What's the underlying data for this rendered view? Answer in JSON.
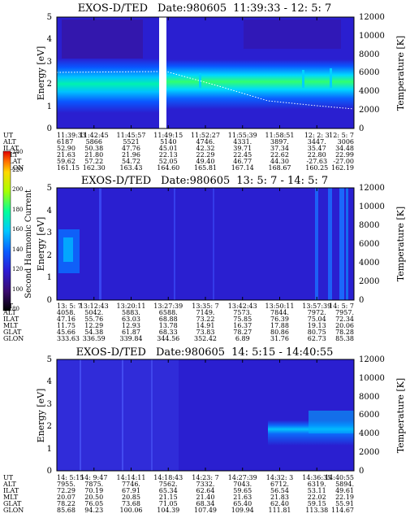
{
  "chart_data": [
    {
      "type": "heatmap",
      "title": "EXOS-D/TED",
      "date_label": "Date:980605",
      "time_range": "11:39:33 - 12: 5: 7",
      "ylabel": "Energy [eV]",
      "y2label": "Temperature [K]",
      "ylim": [
        0,
        5
      ],
      "yticks": [
        "0",
        "1",
        "2",
        "3",
        "4",
        "5"
      ],
      "y2lim": [
        0,
        12000
      ],
      "y2ticks": [
        "0",
        "2000",
        "4000",
        "6000",
        "8000",
        "10000",
        "12000"
      ],
      "data_gap": {
        "start_utc": "11:48:00",
        "end_utc": "11:48:40"
      },
      "temperature_trace": {
        "x": [
          0.0,
          0.25,
          0.5,
          0.6,
          0.75,
          0.9,
          1.0
        ],
        "y": [
          5900,
          5900,
          6000,
          5600,
          5000,
          4600,
          4700
        ]
      },
      "orbit_table": {
        "labels": [
          "UT",
          "ALT",
          "ILAT",
          "MLT",
          "GLAT",
          "GLON"
        ],
        "columns": [
          [
            "11:39:33",
            "6187",
            "52.90",
            "21.63",
            "59.62",
            "161.15"
          ],
          [
            "11:42:45",
            "5866",
            "50.38",
            "21.80",
            "57.22",
            "162.30"
          ],
          [
            "11:45:57",
            "5521",
            "47.76",
            "21.96",
            "54.72",
            "163.43"
          ],
          [
            "11:49:15",
            "5140",
            "45.01",
            "22.13",
            "52.05",
            "164.60"
          ],
          [
            "11:52:27",
            "4746.",
            "42.32",
            "22.29",
            "49.40",
            "165.81"
          ],
          [
            "11:55:39",
            "4331.",
            "39.71",
            "22.45",
            "46.77",
            "167.14"
          ],
          [
            "11:58:51",
            "3897.",
            "37.34",
            "22.62",
            "44.30",
            "168.67"
          ],
          [
            "12: 2: 3",
            "3447.",
            "35.47",
            "22.80",
            "-27.63",
            "160.25"
          ],
          [
            "12: 5: 7",
            "3006",
            "34.48",
            "22.99",
            "-27.00",
            "162.19"
          ]
        ]
      }
    },
    {
      "type": "heatmap",
      "title": "EXOS-D/TED",
      "date_label": "Date:980605",
      "time_range": "13: 5: 7 - 14: 5: 7",
      "ylabel": "Energy [eV]",
      "y2label": "Temperature [K]",
      "ylim": [
        0,
        5
      ],
      "yticks": [
        "0",
        "1",
        "2",
        "3",
        "4",
        "5"
      ],
      "y2lim": [
        0,
        12000
      ],
      "y2ticks": [
        "0",
        "2000",
        "4000",
        "6000",
        "8000",
        "10000",
        "12000"
      ],
      "colorbar": {
        "label": "Second Harmonic Current",
        "range": [
          80,
          240
        ],
        "ticks": [
          "80",
          "100",
          "120",
          "140",
          "160",
          "180",
          "200",
          "220",
          "240"
        ],
        "colors": [
          "#000000",
          "#3a0a6e",
          "#2d1bd4",
          "#0a5cff",
          "#00c8ff",
          "#00ff9c",
          "#a8ff00",
          "#ffd800",
          "#ff6a00",
          "#e00000"
        ]
      },
      "orbit_table": {
        "labels": [
          "UT",
          "ALT",
          "ILAT",
          "MLT",
          "GLAT",
          "GLON"
        ],
        "columns": [
          [
            "13: 5: 7",
            "4058.",
            "47.16",
            "11.75",
            "45.66",
            "333.63"
          ],
          [
            "13:12:43",
            "5042.",
            "55.76",
            "12.29",
            "54.38",
            "336.59"
          ],
          [
            "13:20:11",
            "5883.",
            "63.03",
            "12.93",
            "61.87",
            "339.84"
          ],
          [
            "13:27:39",
            "6588.",
            "68.88",
            "13.78",
            "68.33",
            "344.56"
          ],
          [
            "13:35: 7",
            "7149.",
            "73.22",
            "14.91",
            "73.83",
            "352.42"
          ],
          [
            "13:42:43",
            "7573.",
            "75.85",
            "16.37",
            "78.27",
            "6.89"
          ],
          [
            "13:50:11",
            "7844.",
            "76.39",
            "17.88",
            "80.86",
            "31.76"
          ],
          [
            "13:57:39",
            "7972.",
            "75.04",
            "19.13",
            "80.75",
            "62.73"
          ],
          [
            "14: 5: 7",
            "7957.",
            "72.34",
            "20.06",
            "78.28",
            "85.38"
          ]
        ]
      }
    },
    {
      "type": "heatmap",
      "title": "EXOS-D/TED",
      "date_label": "Date:980605",
      "time_range": "14: 5:15 - 14:40:55",
      "ylabel": "Energy [eV]",
      "y2label": "Temperature [K]",
      "ylim": [
        0,
        5
      ],
      "yticks": [
        "0",
        "1",
        "2",
        "3",
        "4",
        "5"
      ],
      "y2lim": [
        0,
        12000
      ],
      "y2ticks": [
        "0",
        "2000",
        "4000",
        "6000",
        "8000",
        "10000",
        "12000"
      ],
      "orbit_table": {
        "labels": [
          "UT",
          "ALT",
          "ILAT",
          "MLT",
          "GLAT",
          "GLON"
        ],
        "columns": [
          [
            "14: 5:15",
            "7955.",
            "72.29",
            "20.07",
            "78.22",
            "85.68"
          ],
          [
            "14: 9:47",
            "7875.",
            "70.19",
            "20.50",
            "76.05",
            "94.23"
          ],
          [
            "14:14:11",
            "7746.",
            "67.91",
            "20.85",
            "73.68",
            "100.06"
          ],
          [
            "14:18:43",
            "7562.",
            "65.34",
            "21.15",
            "71.05",
            "104.39"
          ],
          [
            "14:23: 7",
            "7332.",
            "62.64",
            "21.40",
            "68.34",
            "107.49"
          ],
          [
            "14:27:39",
            "7043.",
            "59.65",
            "21.63",
            "65.40",
            "109.94"
          ],
          [
            "14:32: 3",
            "6712.",
            "56.54",
            "21.83",
            "62.40",
            "111.81"
          ],
          [
            "14:36:35",
            "6319.",
            "53.11",
            "22.02",
            "59.15",
            "113.38"
          ],
          [
            "14:40:55",
            "5894.",
            "49.61",
            "22.19",
            "55.91",
            "114.67"
          ]
        ]
      }
    }
  ]
}
